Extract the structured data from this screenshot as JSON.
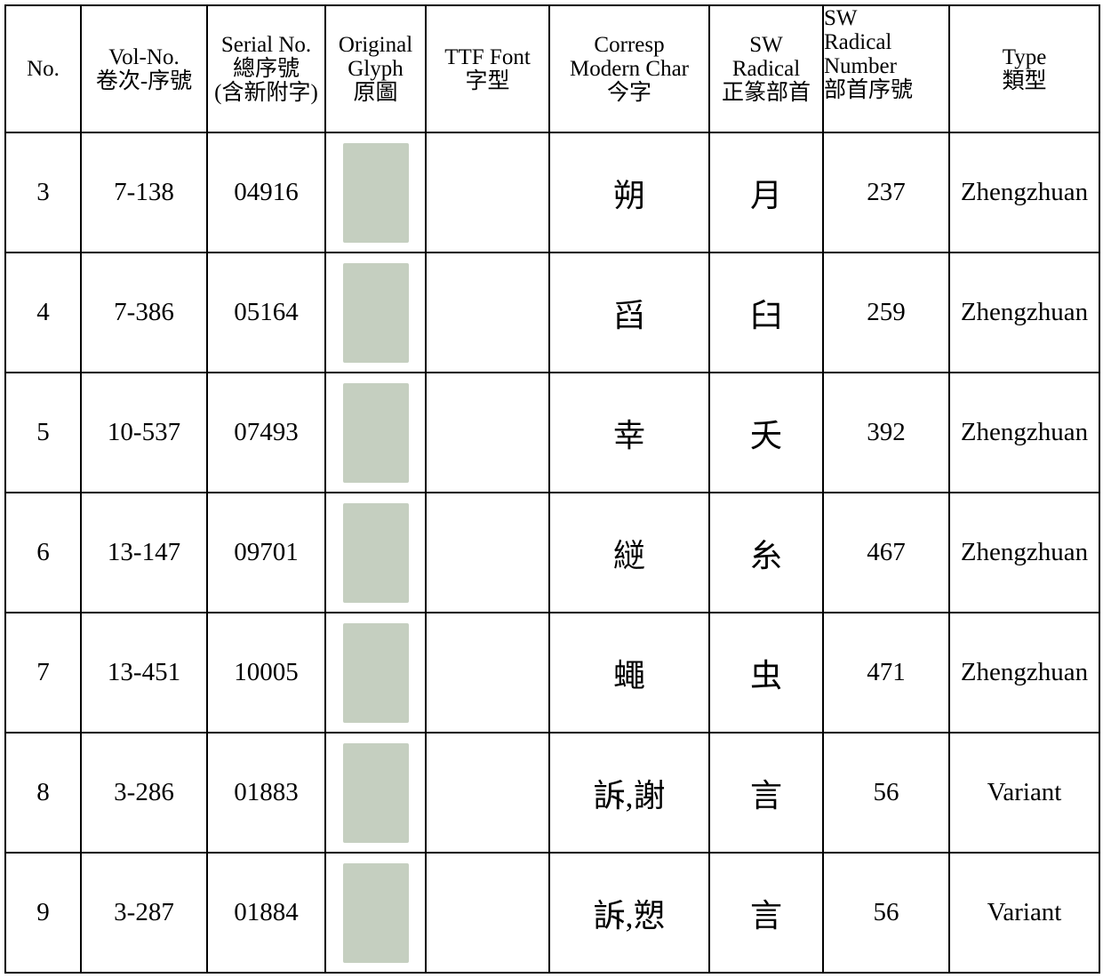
{
  "table": {
    "header": [
      [
        "No."
      ],
      [
        "Vol-No.",
        "卷次-序號"
      ],
      [
        "Serial No.",
        "總序號",
        "(含新附字)"
      ],
      [
        "Original",
        "Glyph",
        "原圖"
      ],
      [
        "TTF Font",
        "字型"
      ],
      [
        "Corresp",
        "Modern Char",
        "今字"
      ],
      [
        "SW",
        "Radical",
        "正篆部首"
      ],
      [
        "SW",
        "Radical",
        "Number",
        "部首序號"
      ],
      [
        "Type",
        "類型"
      ]
    ],
    "rows": [
      [
        "3",
        "7-138",
        "04916",
        "朔",
        "月",
        "237",
        "Zhengzhuan"
      ],
      [
        "4",
        "7-386",
        "05164",
        "舀",
        "臼",
        "259",
        "Zhengzhuan"
      ],
      [
        "5",
        "10-537",
        "07493",
        "幸",
        "夭",
        "392",
        "Zhengzhuan"
      ],
      [
        "6",
        "13-147",
        "09701",
        "縌",
        "糸",
        "467",
        "Zhengzhuan"
      ],
      [
        "7",
        "13-451",
        "10005",
        "蠅",
        "虫",
        "471",
        "Zhengzhuan"
      ],
      [
        "8",
        "3-286",
        "01883",
        "訴,謝",
        "言",
        "56",
        "Variant"
      ],
      [
        "9",
        "3-287",
        "01884",
        "訴,愬",
        "言",
        "56",
        "Variant"
      ]
    ]
  }
}
